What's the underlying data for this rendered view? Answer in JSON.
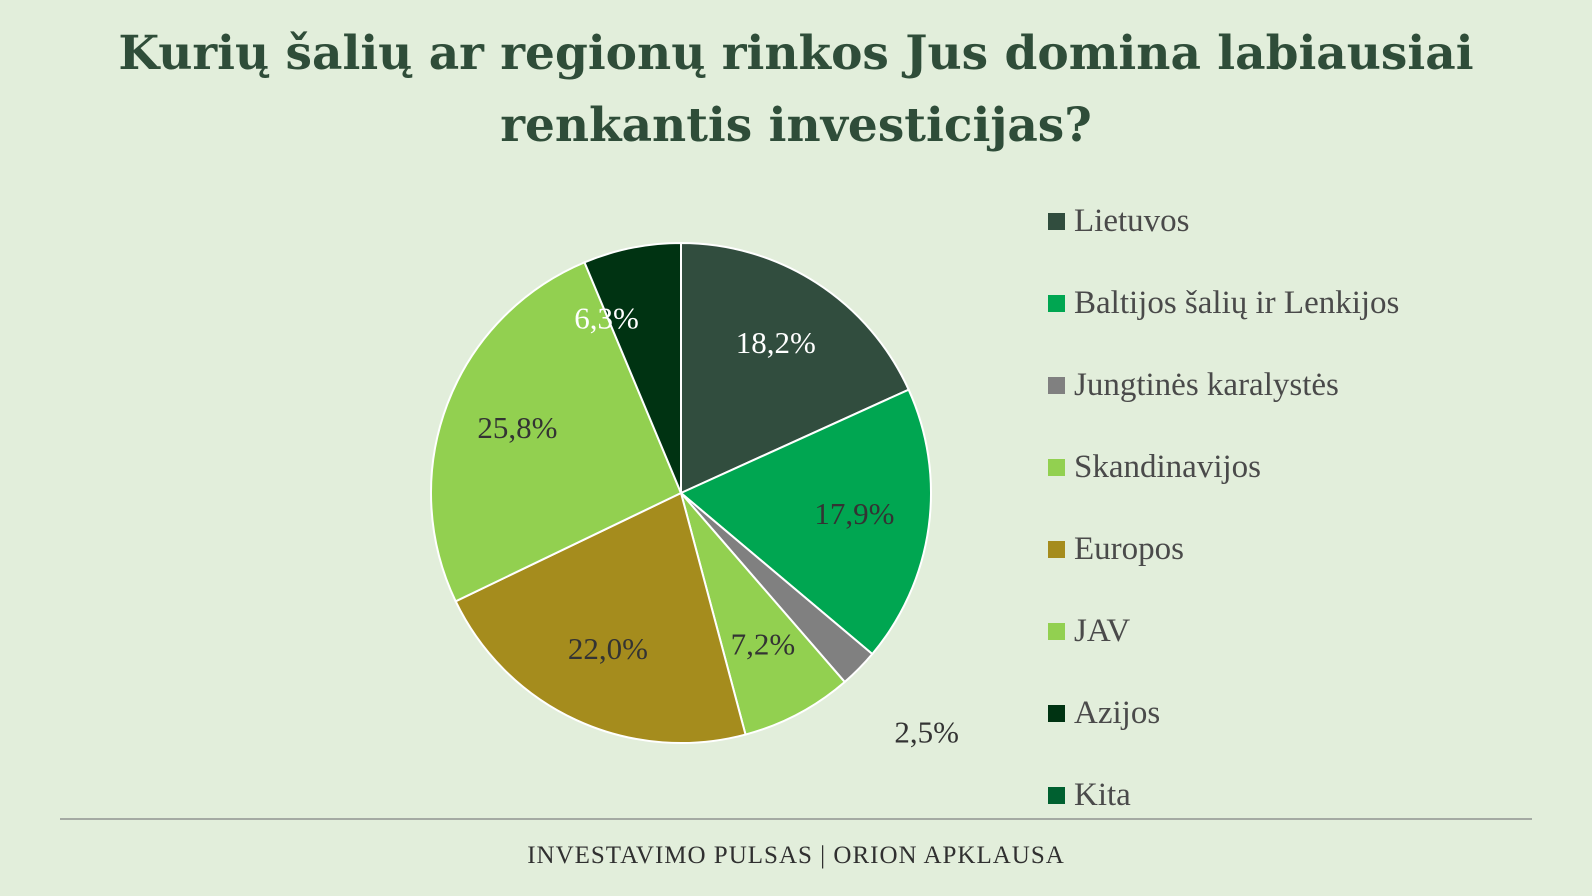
{
  "title_lines": [
    "Kurių šalių ar regionų rinkos Jus domina labiausiai",
    "renkantis investicijas?"
  ],
  "footer": {
    "text": "INVESTAVIMO PULSAS | ORION APKLAUSA"
  },
  "chart_data": {
    "type": "pie",
    "title": "Kurių šalių ar regionų rinkos Jus domina labiausiai renkantis investicijas?",
    "legend_position": "right",
    "slices": [
      {
        "name": "Lietuvos",
        "value": 18.2,
        "label": "18,2%",
        "color": "#314d3e",
        "label_color": "#ffffff"
      },
      {
        "name": "Baltijos šalių ir Lenkijos",
        "value": 17.9,
        "label": "17,9%",
        "color": "#00a651",
        "label_color": "#333333"
      },
      {
        "name": "Jungtinės karalystės",
        "value": 2.5,
        "label": "2,5%",
        "color": "#808080",
        "label_color": "#333333"
      },
      {
        "name": "Skandinavijos",
        "value": 0,
        "label": "",
        "color": "#92d050",
        "label_color": "#333333"
      },
      {
        "name": "JAV",
        "value": 7.2,
        "label": "7,2%",
        "color": "#92d050",
        "label_color": "#333333"
      },
      {
        "name": "Europos",
        "value": 22.0,
        "label": "22,0%",
        "color": "#a58c1d",
        "label_color": "#333333"
      },
      {
        "name": "Skandinavijos",
        "value": 25.8,
        "label": "25,8%",
        "color": "#92d050",
        "label_color": "#333333"
      },
      {
        "name": "Azijos",
        "value": 6.3,
        "label": "6,3%",
        "color": "#003312",
        "label_color": "#ffffff"
      },
      {
        "name": "Kita",
        "value": 0,
        "label": "",
        "color": "#006030",
        "label_color": "#ffffff"
      }
    ],
    "legend": [
      {
        "label": "Lietuvos",
        "color": "#314d3e"
      },
      {
        "label": "Baltijos šalių ir Lenkijos",
        "color": "#00a651"
      },
      {
        "label": "Jungtinės karalystės",
        "color": "#808080"
      },
      {
        "label": "Skandinavijos",
        "color": "#92d050"
      },
      {
        "label": "Europos",
        "color": "#a58c1d"
      },
      {
        "label": "JAV",
        "color": "#92d050"
      },
      {
        "label": "Azijos",
        "color": "#003312"
      },
      {
        "label": "Kita",
        "color": "#006030"
      }
    ]
  }
}
